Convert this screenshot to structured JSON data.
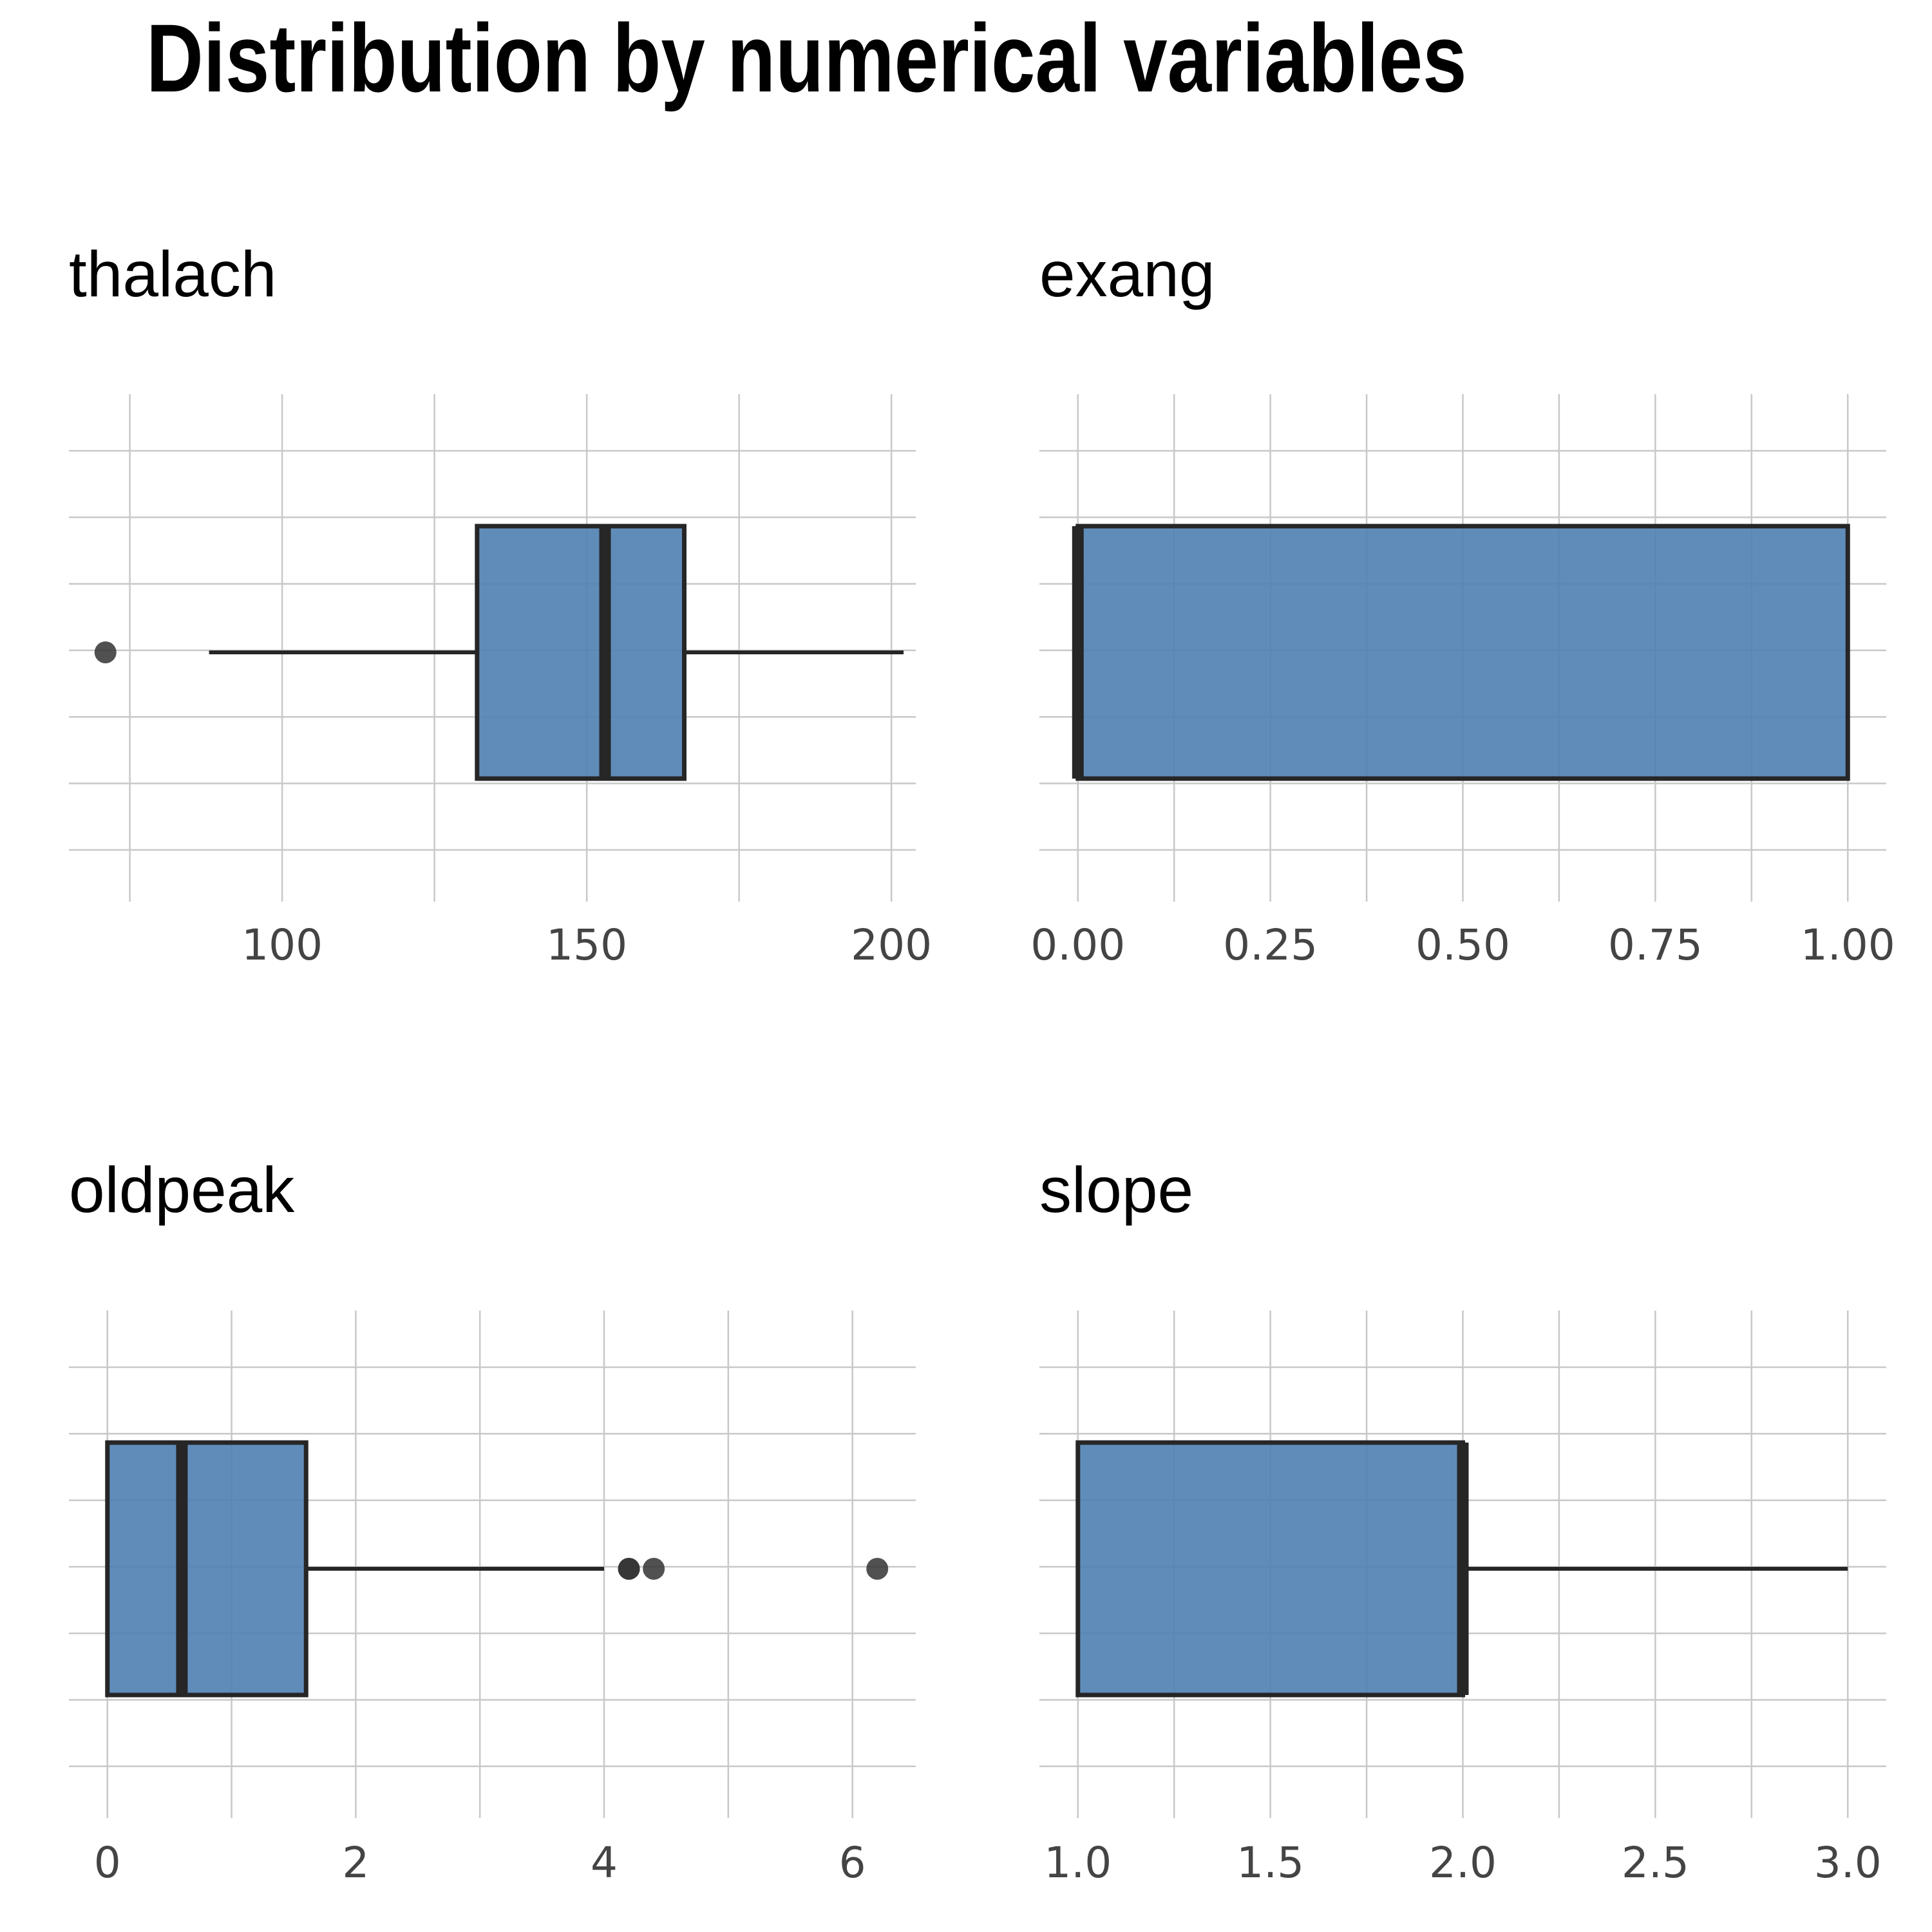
{
  "title": "Distribution by numerical variables",
  "colors": {
    "box_fill": "#4f7fb3",
    "box_outline": "#262626",
    "grid": "#c8c8c8",
    "outlier": "#333333"
  },
  "chart_data": [
    {
      "type": "boxplot",
      "title": "thalach",
      "orientation": "horizontal",
      "xlim": [
        65,
        204
      ],
      "ticks": [
        100,
        150,
        200
      ],
      "tick_labels": [
        "100",
        "150",
        "200"
      ],
      "minor_ticks": [
        75,
        125,
        175
      ],
      "stats": {
        "whisker_low": 88,
        "q1": 132,
        "median": 153,
        "q3": 166,
        "whisker_high": 202
      },
      "outliers": [
        71
      ],
      "grid": true
    },
    {
      "type": "boxplot",
      "title": "exang",
      "orientation": "horizontal",
      "xlim": [
        -0.05,
        1.05
      ],
      "ticks": [
        0.0,
        0.25,
        0.5,
        0.75,
        1.0
      ],
      "tick_labels": [
        "0.00",
        "0.25",
        "0.50",
        "0.75",
        "1.00"
      ],
      "minor_ticks": [
        0.125,
        0.375,
        0.625,
        0.875
      ],
      "stats": {
        "whisker_low": 0,
        "q1": 0,
        "median": 0,
        "q3": 1,
        "whisker_high": 1
      },
      "outliers": [],
      "grid": true
    },
    {
      "type": "boxplot",
      "title": "oldpeak",
      "orientation": "horizontal",
      "xlim": [
        -0.31,
        6.51
      ],
      "ticks": [
        0,
        2,
        4,
        6
      ],
      "tick_labels": [
        "0",
        "2",
        "4",
        "6"
      ],
      "minor_ticks": [
        1,
        3,
        5
      ],
      "stats": {
        "whisker_low": 0,
        "q1": 0,
        "median": 0.6,
        "q3": 1.6,
        "whisker_high": 4.0
      },
      "outliers": [
        4.2,
        4.2,
        4.4,
        6.2
      ],
      "grid": true
    },
    {
      "type": "boxplot",
      "title": "slope",
      "orientation": "horizontal",
      "xlim": [
        0.9,
        3.1
      ],
      "ticks": [
        1.0,
        1.5,
        2.0,
        2.5,
        3.0
      ],
      "tick_labels": [
        "1.0",
        "1.5",
        "2.0",
        "2.5",
        "3.0"
      ],
      "minor_ticks": [
        1.25,
        1.75,
        2.25,
        2.75
      ],
      "stats": {
        "whisker_low": 1,
        "q1": 1,
        "median": 2,
        "q3": 2,
        "whisker_high": 3
      },
      "outliers": [],
      "grid": true
    }
  ]
}
